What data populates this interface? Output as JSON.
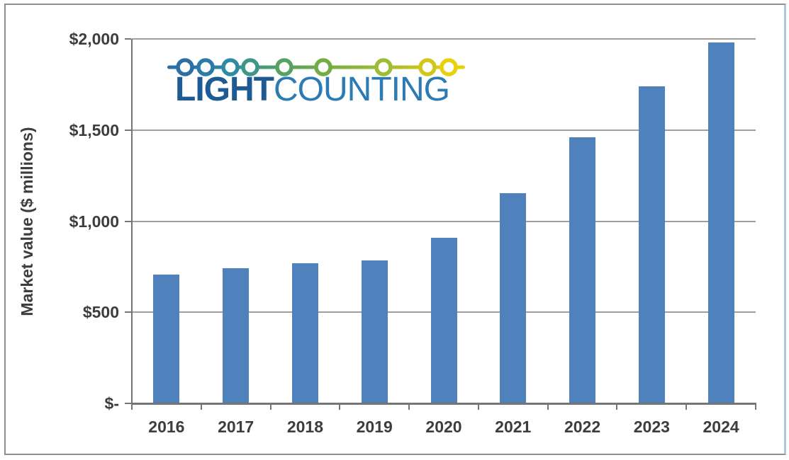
{
  "chart_data": {
    "type": "bar",
    "categories": [
      "2016",
      "2017",
      "2018",
      "2019",
      "2020",
      "2021",
      "2022",
      "2023",
      "2024"
    ],
    "values": [
      705,
      740,
      770,
      785,
      910,
      1155,
      1460,
      1740,
      1980
    ],
    "title": "",
    "xlabel": "",
    "ylabel": "Market value ($ millions)",
    "ylim": [
      0,
      2000
    ],
    "ytick_step": 500,
    "ytick_labels": [
      "$-",
      "$500",
      "$1,000",
      "$1,500",
      "$2,000"
    ],
    "grid": true,
    "legend": "none",
    "bar_color": "#4f81bd",
    "gridline_color": "#9e9e9e",
    "axis_color": "#757575",
    "label_color": "#3d3d3d"
  },
  "logo": {
    "text_bold": "LIGHT",
    "text_regular": "COUNTING",
    "text_bold_color": "#1e5b94",
    "text_regular_color": "#2c7bb2",
    "circle_colors": [
      "#2d6fa5",
      "#2b7aa7",
      "#2f8ba3",
      "#3d9687",
      "#57a163",
      "#73ac45",
      "#9ebc35",
      "#d2c51c",
      "#e9d00d"
    ]
  }
}
